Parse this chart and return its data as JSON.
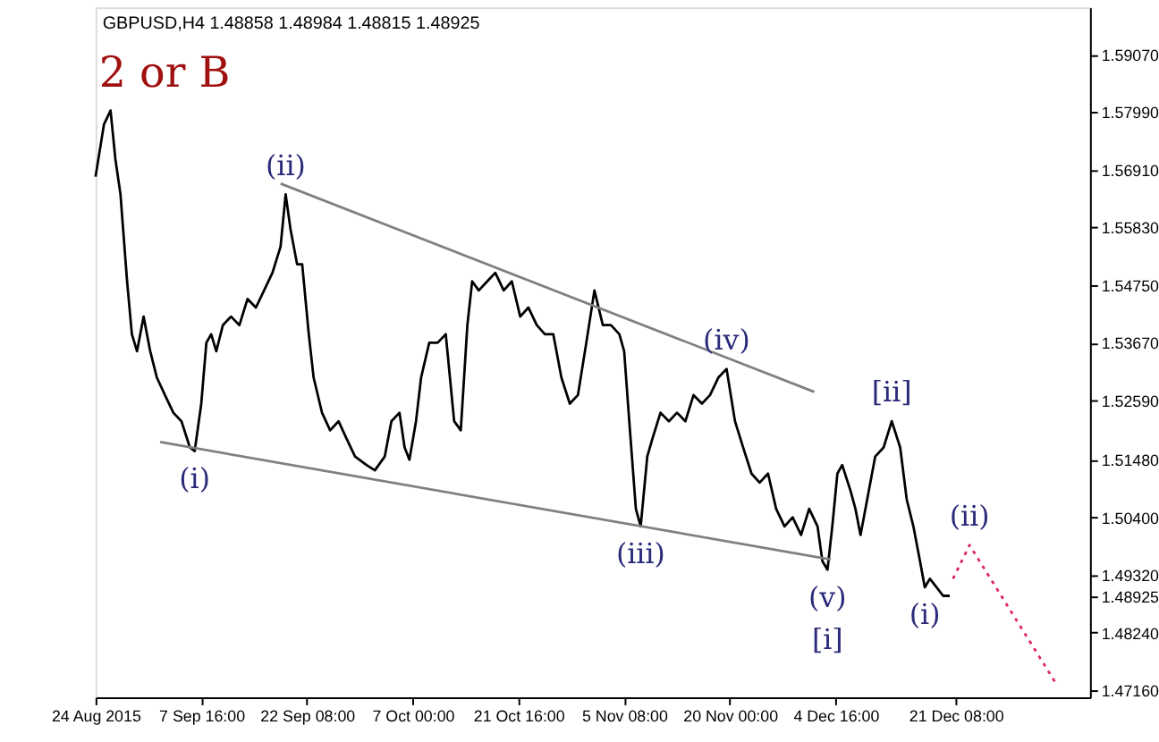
{
  "chart_data": {
    "type": "line",
    "title": "2 or B",
    "subtitle": "GBPUSD,H4  1.48858 1.48984 1.48815 1.48925",
    "x": [
      "2015-08-24T00:00",
      "2015-08-25T04:00",
      "2015-08-26T02:00",
      "2015-08-26T18:00",
      "2015-08-27T11:00",
      "2015-08-28T09:00",
      "2015-08-29T01:00",
      "2015-08-29T18:00",
      "2015-08-30T16:00",
      "2015-08-31T14:00",
      "2015-09-01T12:00",
      "2015-09-02T15:00",
      "2015-09-03T19:00",
      "2015-09-04T22:00",
      "2015-09-06T02:00",
      "2015-09-06T18:00",
      "2015-09-07T16:00",
      "2015-09-08T09:00",
      "2015-09-09T01:00",
      "2015-09-09T18:00",
      "2015-09-10T16:00",
      "2015-09-11T19:00",
      "2015-09-12T23:00",
      "2015-09-14T02:00",
      "2015-09-15T06:00",
      "2015-09-16T09:00",
      "2015-09-17T13:00",
      "2015-09-18T16:00",
      "2015-09-19T09:00",
      "2015-09-20T01:00",
      "2015-09-20T23:00",
      "2015-09-21T16:00",
      "2015-09-22T14:00",
      "2015-09-23T06:00",
      "2015-09-24T10:00",
      "2015-09-25T13:00",
      "2015-09-26T17:00",
      "2015-09-27T20:00",
      "2015-09-29T00:00",
      "2015-09-30T14:00",
      "2015-10-01T18:00",
      "2015-10-03T03:00",
      "2015-10-04T01:00",
      "2015-10-05T04:00",
      "2015-10-05T21:00",
      "2015-10-06T13:00",
      "2015-10-07T11:00",
      "2015-10-08T04:00",
      "2015-10-09T07:00",
      "2015-10-10T11:00",
      "2015-10-11T14:00",
      "2015-10-12T18:00",
      "2015-10-13T16:00",
      "2015-10-14T14:00",
      "2015-10-15T06:00",
      "2015-10-16T04:00",
      "2015-10-17T08:00",
      "2015-10-18T11:00",
      "2015-10-19T15:00",
      "2015-10-20T18:00",
      "2015-10-21T22:00",
      "2015-10-23T01:00",
      "2015-10-24T05:00",
      "2015-10-25T08:00",
      "2015-10-26T12:00",
      "2015-10-27T15:00",
      "2015-10-28T19:00",
      "2015-10-29T22:00",
      "2015-10-31T02:00",
      "2015-11-01T05:00",
      "2015-11-02T09:00",
      "2015-11-03T12:00",
      "2015-11-04T16:00",
      "2015-11-05T08:00",
      "2015-11-06T01:00",
      "2015-11-06T23:00",
      "2015-11-07T15:00",
      "2015-11-08T13:00",
      "2015-11-09T06:00",
      "2015-11-10T09:00",
      "2015-11-11T13:00",
      "2015-11-12T16:00",
      "2015-11-13T20:00",
      "2015-11-14T23:00",
      "2015-11-16T03:00",
      "2015-11-17T06:00",
      "2015-11-18T10:00",
      "2015-11-19T13:00",
      "2015-11-20T17:00",
      "2015-11-21T20:00",
      "2015-11-23T00:00",
      "2015-11-24T03:00",
      "2015-11-25T07:00",
      "2015-11-26T10:00",
      "2015-11-27T14:00",
      "2015-11-28T17:00",
      "2015-11-29T21:00",
      "2015-12-01T00:00",
      "2015-12-02T04:00",
      "2015-12-02T20:00",
      "2015-12-03T13:00",
      "2015-12-04T05:00",
      "2015-12-04T22:00",
      "2015-12-05T14:00",
      "2015-12-06T18:00",
      "2015-12-07T10:00",
      "2015-12-08T03:00",
      "2015-12-09T01:00",
      "2015-12-10T04:00",
      "2015-12-11T08:00",
      "2015-12-12T11:00",
      "2015-12-13T15:00",
      "2015-12-14T13:00",
      "2015-12-15T11:00",
      "2015-12-16T09:00",
      "2015-12-17T01:00",
      "2015-12-17T18:00",
      "2015-12-18T16:00",
      "2015-12-19T14:00",
      "2015-12-20T12:00"
    ],
    "series": [
      {
        "color": "#000000",
        "values": [
          1.5678,
          1.5776,
          1.5802,
          1.5711,
          1.5645,
          1.5482,
          1.5383,
          1.5351,
          1.5416,
          1.5351,
          1.5302,
          1.5269,
          1.5236,
          1.522,
          1.5171,
          1.5164,
          1.5253,
          1.5367,
          1.5383,
          1.5351,
          1.54,
          1.5416,
          1.54,
          1.5449,
          1.5433,
          1.5465,
          1.5498,
          1.5547,
          1.5645,
          1.558,
          1.5514,
          1.5514,
          1.5383,
          1.5302,
          1.5236,
          1.5203,
          1.522,
          1.5187,
          1.5154,
          1.5138,
          1.5128,
          1.5154,
          1.522,
          1.5236,
          1.5171,
          1.5148,
          1.522,
          1.5302,
          1.5367,
          1.5367,
          1.5383,
          1.522,
          1.5203,
          1.54,
          1.5482,
          1.5465,
          1.5482,
          1.5498,
          1.5465,
          1.5482,
          1.5416,
          1.5433,
          1.54,
          1.5383,
          1.5383,
          1.5302,
          1.5253,
          1.5269,
          1.5367,
          1.5465,
          1.54,
          1.54,
          1.5383,
          1.5351,
          1.522,
          1.5056,
          1.5023,
          1.5154,
          1.5187,
          1.5236,
          1.522,
          1.5236,
          1.522,
          1.5269,
          1.5253,
          1.5269,
          1.5302,
          1.5318,
          1.522,
          1.5171,
          1.5122,
          1.5105,
          1.5122,
          1.5056,
          1.5023,
          1.504,
          1.5007,
          1.5056,
          1.5023,
          1.4958,
          1.4942,
          1.5023,
          1.5122,
          1.5138,
          1.5089,
          1.5056,
          1.5007,
          1.5073,
          1.5154,
          1.5171,
          1.522,
          1.5171,
          1.5073,
          1.5023,
          1.4958,
          1.4909,
          1.4925,
          1.4909,
          1.4893,
          1.4893
        ]
      },
      {
        "color": "#808080",
        "x": [
          "2015-09-18T16:00",
          "2015-12-01T17:00"
        ],
        "values": [
          1.5665,
          1.5275
        ]
      },
      {
        "color": "#808080",
        "x": [
          "2015-09-01T23:00",
          "2015-12-04T00:00"
        ],
        "values": [
          1.5181,
          1.4961
        ]
      },
      {
        "color": "#e0245e",
        "line_style": "dotted",
        "x": [
          "2015-12-20T23:00",
          "2015-12-23T06:00",
          "2016-01-04T09:00"
        ],
        "values": [
          1.4925,
          1.4988,
          1.4726
        ]
      }
    ],
    "xlim": [
      "2015-08-24T00:00",
      "2016-01-08T23:00"
    ],
    "xticks": [
      {
        "value": "2015-08-24T00:00",
        "label": "24 Aug 2015"
      },
      {
        "value": "2015-09-07T16:00",
        "label": "7 Sep 16:00"
      },
      {
        "value": "2015-09-22T08:00",
        "label": "22 Sep 08:00"
      },
      {
        "value": "2015-10-07T00:00",
        "label": "7 Oct 00:00"
      },
      {
        "value": "2015-10-21T16:00",
        "label": "21 Oct 16:00"
      },
      {
        "value": "2015-11-05T08:00",
        "label": "5 Nov 08:00"
      },
      {
        "value": "2015-11-20T00:00",
        "label": "20 Nov 00:00"
      },
      {
        "value": "2015-12-04T16:00",
        "label": "4 Dec 16:00"
      },
      {
        "value": "2015-12-21T08:00",
        "label": "21 Dec 08:00"
      }
    ],
    "ylim": [
      1.4703,
      1.5995
    ],
    "yticks": [
      {
        "value": 1.4716,
        "label": "1.47160"
      },
      {
        "value": 1.4824,
        "label": "1.48240"
      },
      {
        "value": 1.48925,
        "label": "1.48925"
      },
      {
        "value": 1.4932,
        "label": "1.49320"
      },
      {
        "value": 1.504,
        "label": "1.50400"
      },
      {
        "value": 1.5148,
        "label": "1.51480"
      },
      {
        "value": 1.5259,
        "label": "1.52590"
      },
      {
        "value": 1.5367,
        "label": "1.53670"
      },
      {
        "value": 1.5475,
        "label": "1.54750"
      },
      {
        "value": 1.5583,
        "label": "1.55830"
      },
      {
        "value": 1.5691,
        "label": "1.56910"
      },
      {
        "value": 1.5799,
        "label": "1.57990"
      },
      {
        "value": 1.5907,
        "label": "1.59070"
      }
    ],
    "annotations": [
      {
        "text": "(ii)",
        "x": "2015-09-19T09:00",
        "y": 1.5645
      },
      {
        "text": "(i)",
        "x": "2015-09-06T18:00",
        "y": 1.5164
      },
      {
        "text": "(iv)",
        "x": "2015-11-19T13:00",
        "y": 1.5318
      },
      {
        "text": "(iii)",
        "x": "2015-11-07T15:00",
        "y": 1.5023
      },
      {
        "text": "(v)",
        "x": "2015-12-03T13:00",
        "y": 1.4942
      },
      {
        "text": "[i]",
        "x": "2015-12-03T13:00",
        "y": 1.4942
      },
      {
        "text": "[ii]",
        "x": "2015-12-12T11:00",
        "y": 1.522
      },
      {
        "text": "(i)",
        "x": "2015-12-17T01:00",
        "y": 1.4909
      },
      {
        "text": "(ii)",
        "x": "2015-12-23T06:00",
        "y": 1.4988
      }
    ],
    "grid": false
  }
}
